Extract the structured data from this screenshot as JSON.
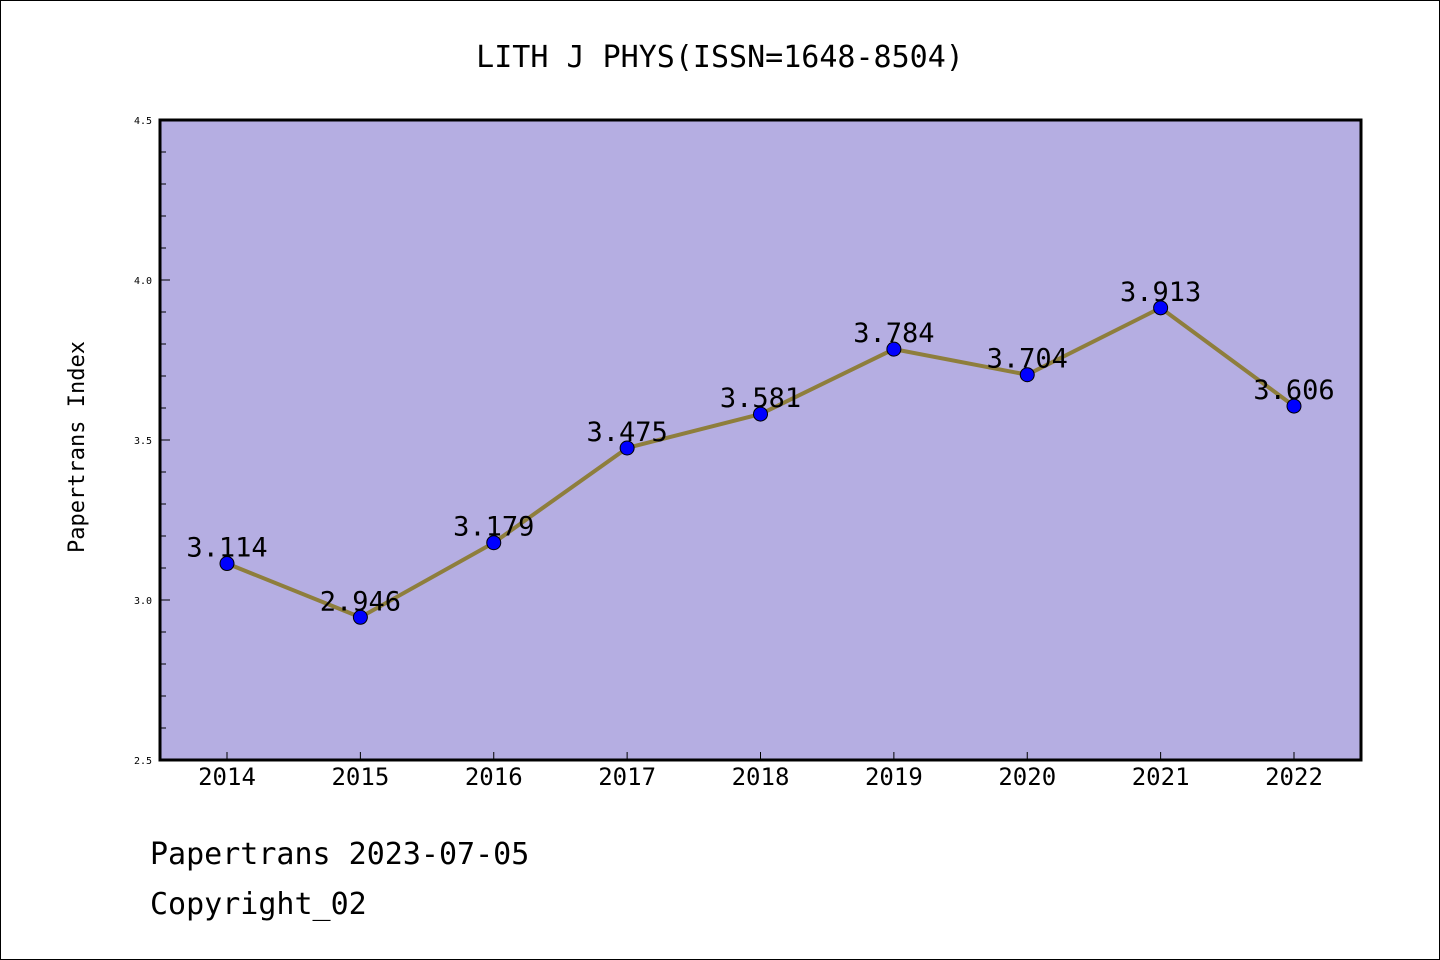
{
  "chart_data": {
    "type": "line",
    "title": "LITH J PHYS(ISSN=1648-8504)",
    "xlabel": "",
    "ylabel": "Papertrans Index",
    "categories": [
      "2014",
      "2015",
      "2016",
      "2017",
      "2018",
      "2019",
      "2020",
      "2021",
      "2022"
    ],
    "series": [
      {
        "values": [
          3.114,
          2.946,
          3.179,
          3.475,
          3.581,
          3.784,
          3.704,
          3.913,
          3.606
        ],
        "labels": [
          "3.114",
          "2.946",
          "3.179",
          "3.475",
          "3.581",
          "3.784",
          "3.704",
          "3.913",
          "3.606"
        ]
      }
    ],
    "ylim": [
      2.5,
      4.5
    ],
    "yticks": [
      "2.5",
      "3.0",
      "3.5",
      "4.0",
      "4.5"
    ],
    "grid": false,
    "colors": {
      "plot_background": "#b5aee2",
      "line": "#8e7e3c",
      "marker": "#0000ff"
    }
  },
  "footer": {
    "line1": "Papertrans 2023-07-05",
    "line2": "Copyright_02"
  }
}
